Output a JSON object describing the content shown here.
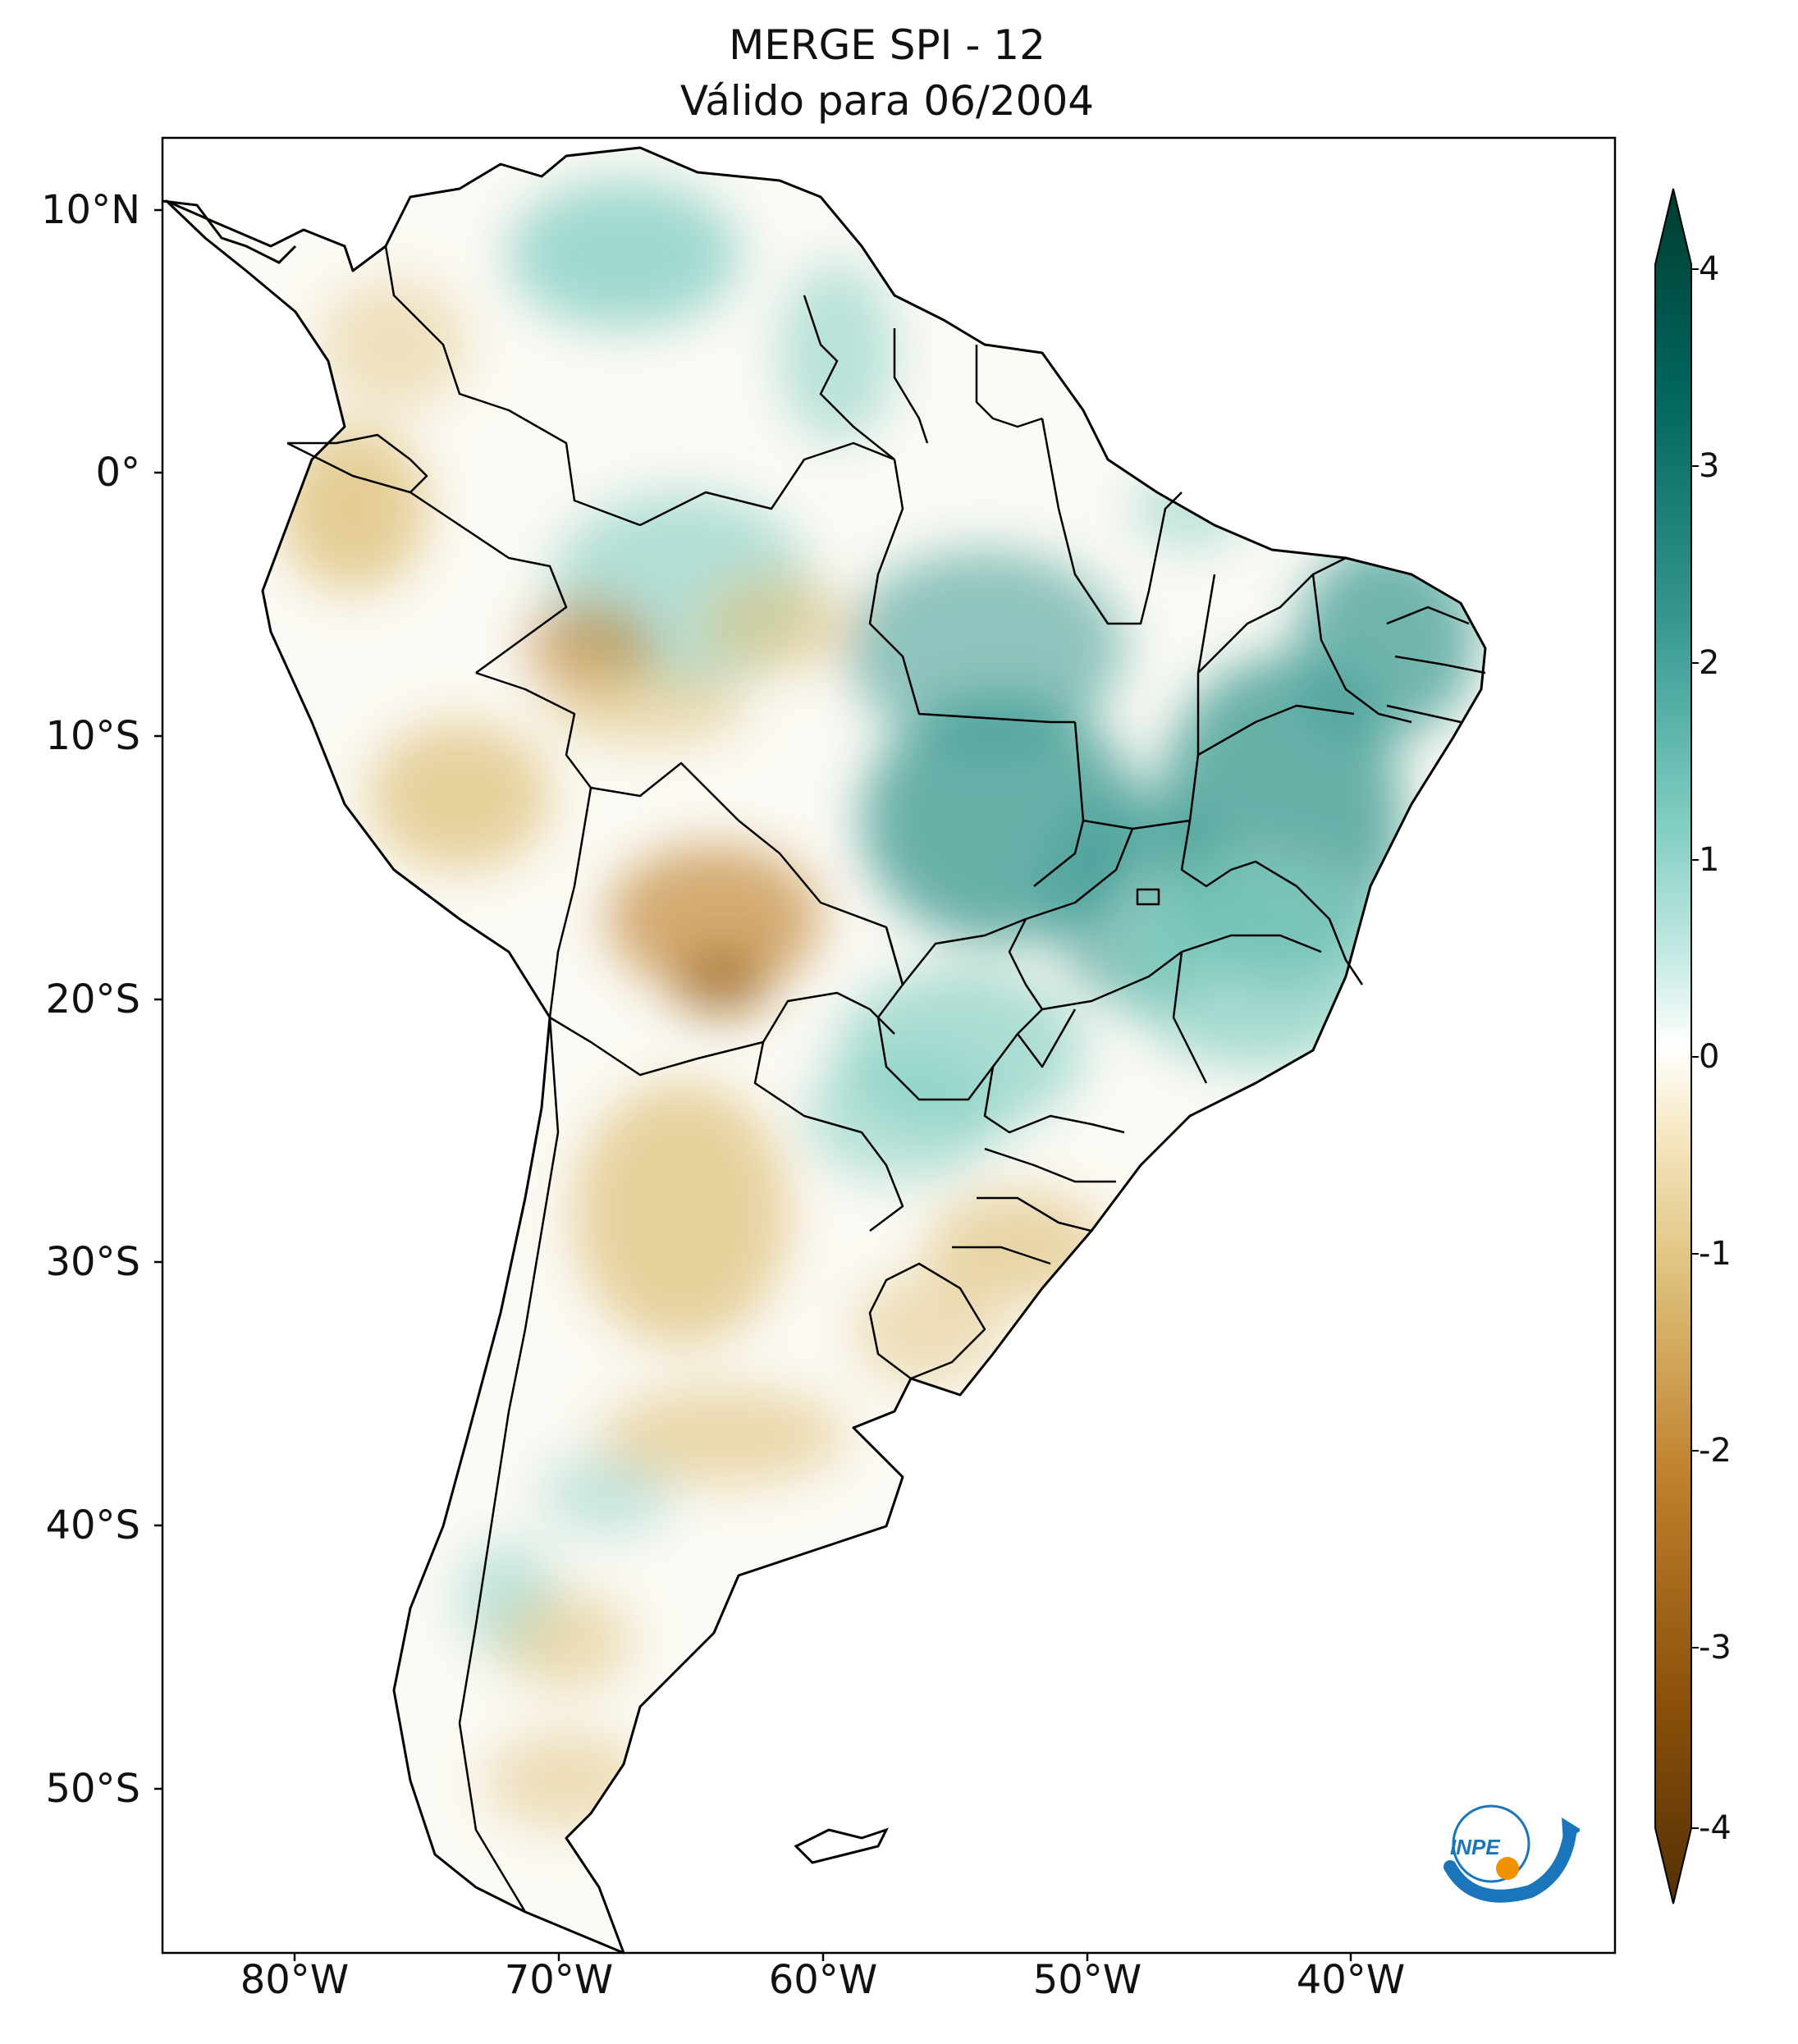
{
  "title": {
    "line1": "MERGE   SPI - 12",
    "line2": "Válido para 06/2004"
  },
  "map": {
    "lat_ticks": [
      {
        "label": "10°N",
        "value": 10
      },
      {
        "label": "0°",
        "value": 0
      },
      {
        "label": "10°S",
        "value": -10
      },
      {
        "label": "20°S",
        "value": -20
      },
      {
        "label": "30°S",
        "value": -30
      },
      {
        "label": "40°S",
        "value": -40
      },
      {
        "label": "50°S",
        "value": -50
      }
    ],
    "lon_ticks": [
      {
        "label": "80°W",
        "value": -80
      },
      {
        "label": "70°W",
        "value": -70
      },
      {
        "label": "60°W",
        "value": -60
      },
      {
        "label": "50°W",
        "value": -50
      },
      {
        "label": "40°W",
        "value": -40
      }
    ],
    "extent": {
      "lon_min": -85,
      "lon_max": -30,
      "lat_min": -56,
      "lat_max": 13
    }
  },
  "colorbar": {
    "min": -4,
    "max": 4,
    "ticks": [
      "4",
      "3",
      "2",
      "1",
      "0",
      "-1",
      "-2",
      "-3",
      "-4"
    ],
    "colors": {
      "dry_extreme": "#543005",
      "dry": "#bf812d",
      "dry_light": "#f6e8c3",
      "neutral": "#ffffff",
      "wet_light": "#c7eae5",
      "wet": "#35978f",
      "wet_extreme": "#003c30"
    }
  },
  "logo": {
    "text": "INPE",
    "icon": "inpe-logo-icon"
  }
}
